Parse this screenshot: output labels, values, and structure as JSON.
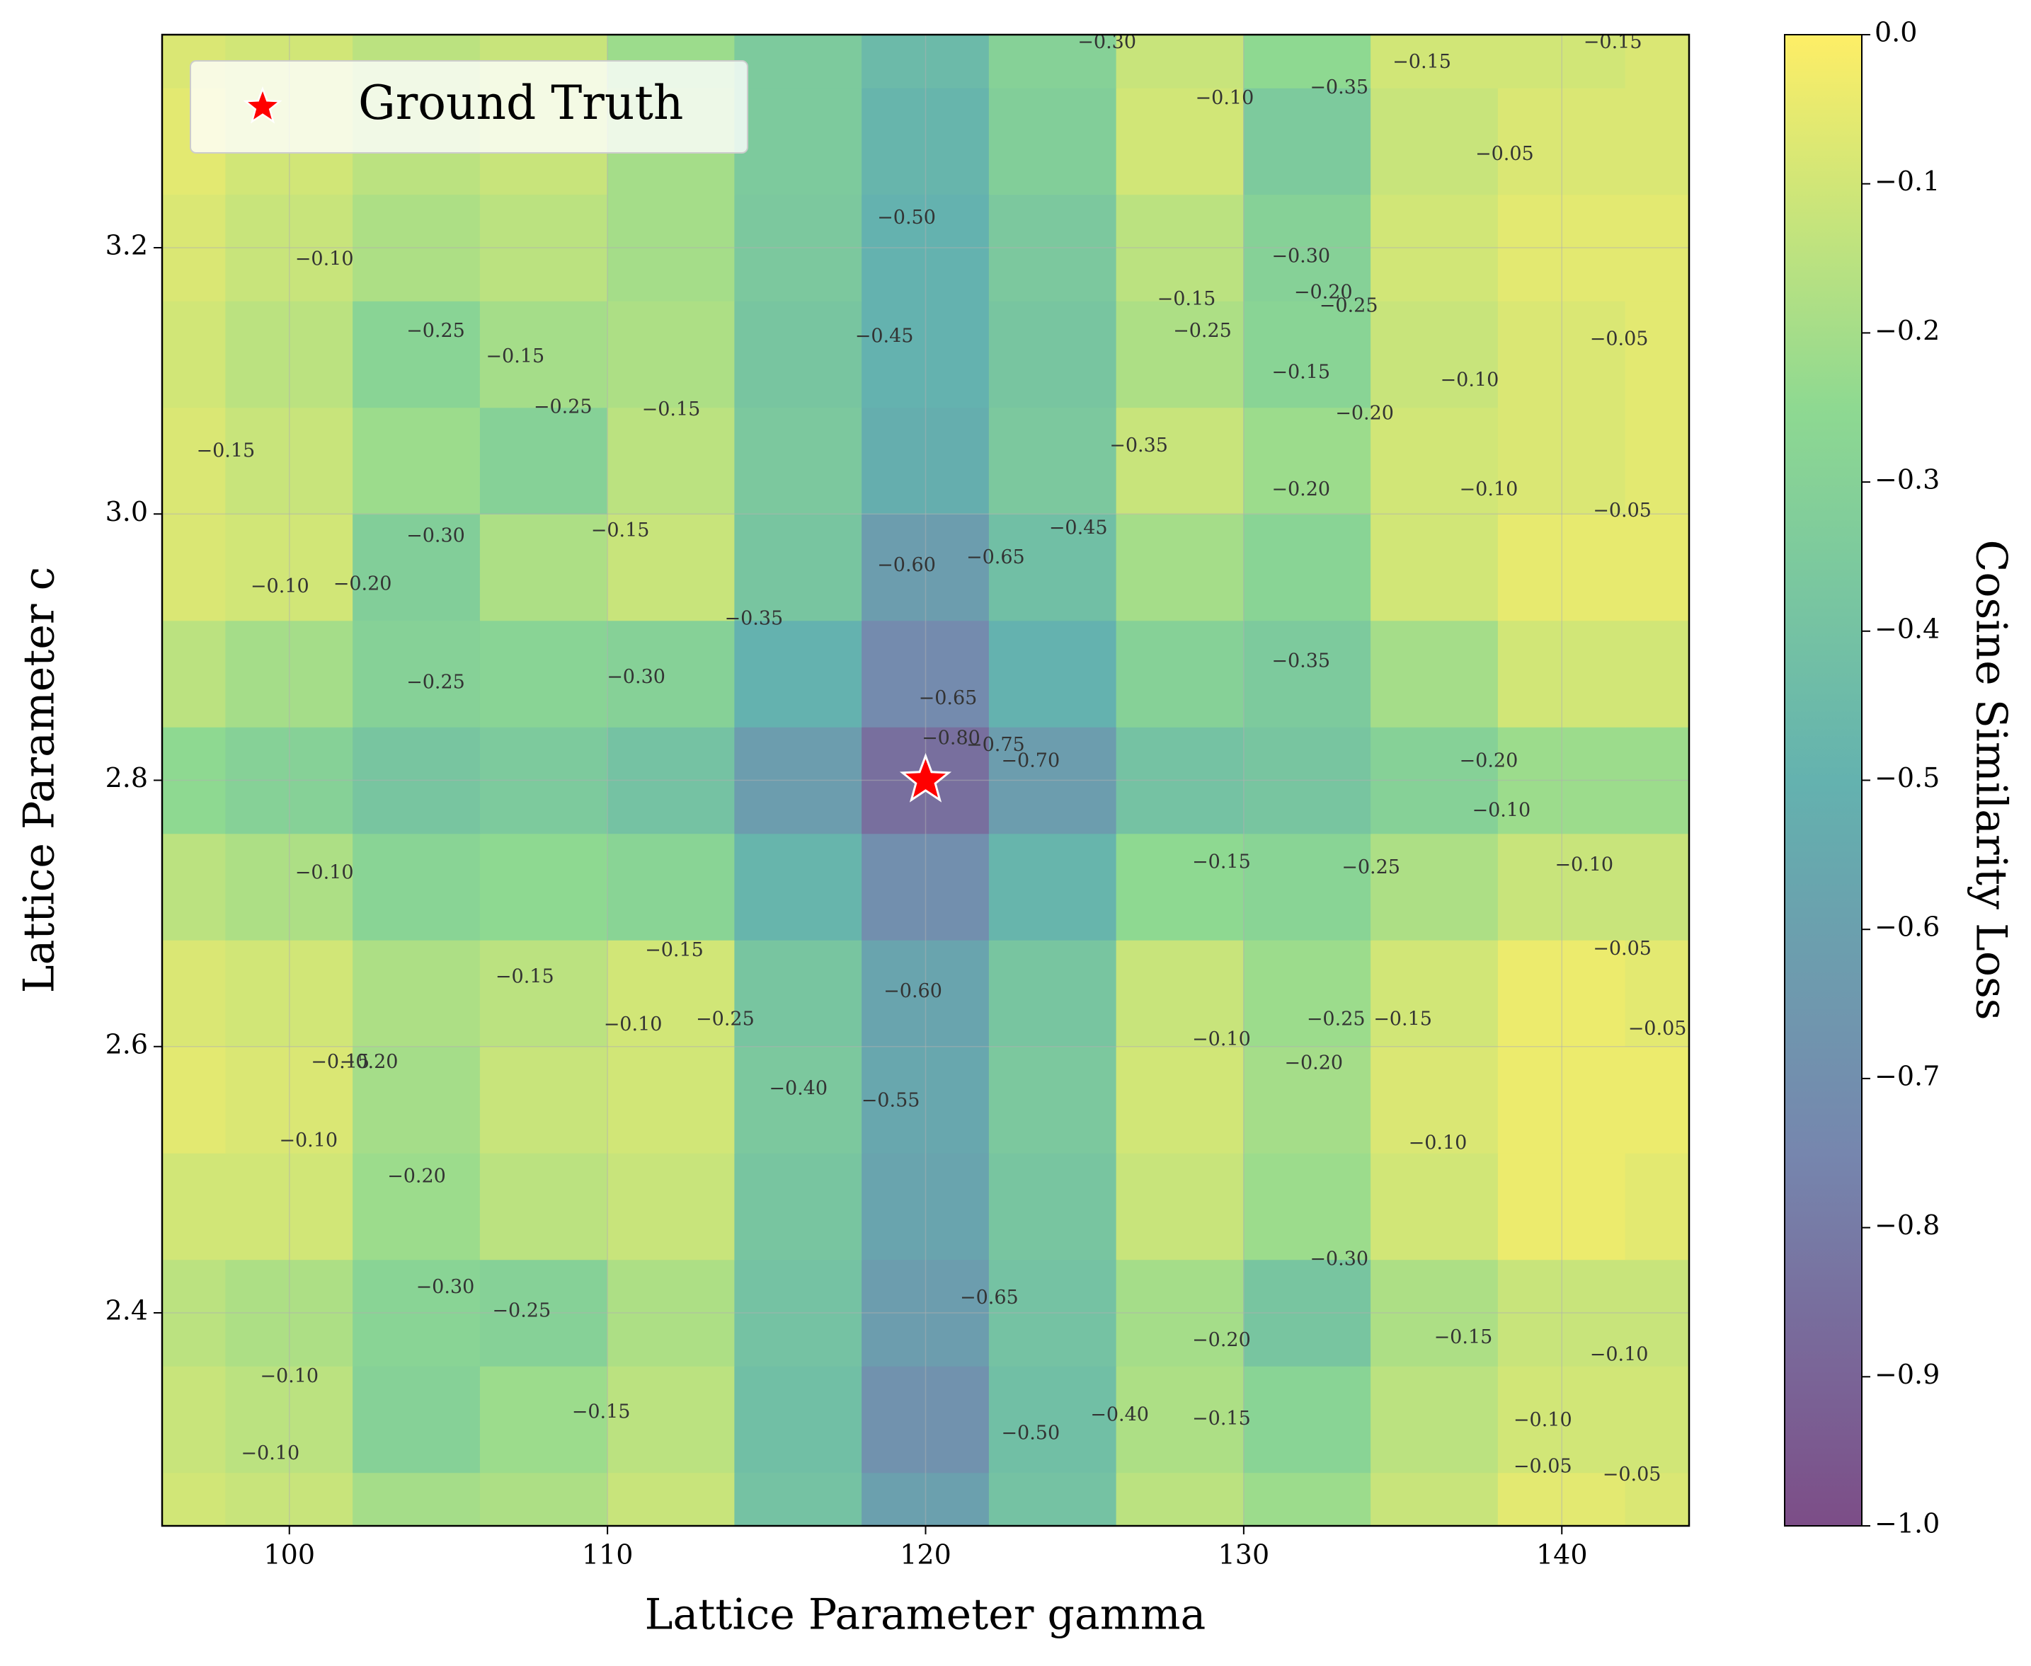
{
  "chart_data": {
    "type": "contour",
    "xlabel": "Lattice Parameter gamma",
    "ylabel": "Lattice Parameter c",
    "colorbar_label": "Cosine Similarity Loss",
    "x": [
      96,
      100,
      104,
      108,
      112,
      116,
      120,
      124,
      128,
      132,
      136,
      140,
      144
    ],
    "y": [
      2.24,
      2.32,
      2.4,
      2.48,
      2.56,
      2.64,
      2.72,
      2.8,
      2.88,
      2.96,
      3.04,
      3.12,
      3.2,
      3.28,
      3.36
    ],
    "z": [
      [
        -0.1,
        -0.12,
        -0.2,
        -0.18,
        -0.12,
        -0.4,
        -0.6,
        -0.4,
        -0.15,
        -0.22,
        -0.12,
        -0.06,
        -0.08
      ],
      [
        -0.12,
        -0.15,
        -0.3,
        -0.22,
        -0.15,
        -0.42,
        -0.68,
        -0.42,
        -0.18,
        -0.28,
        -0.15,
        -0.1,
        -0.1
      ],
      [
        -0.15,
        -0.18,
        -0.28,
        -0.3,
        -0.18,
        -0.4,
        -0.62,
        -0.4,
        -0.2,
        -0.38,
        -0.18,
        -0.12,
        -0.12
      ],
      [
        -0.1,
        -0.1,
        -0.22,
        -0.15,
        -0.12,
        -0.38,
        -0.58,
        -0.38,
        -0.12,
        -0.22,
        -0.1,
        -0.04,
        -0.06
      ],
      [
        -0.06,
        -0.08,
        -0.2,
        -0.12,
        -0.1,
        -0.36,
        -0.56,
        -0.36,
        -0.1,
        -0.2,
        -0.08,
        -0.04,
        -0.04
      ],
      [
        -0.08,
        -0.1,
        -0.18,
        -0.15,
        -0.1,
        -0.38,
        -0.58,
        -0.38,
        -0.12,
        -0.22,
        -0.1,
        -0.04,
        -0.06
      ],
      [
        -0.15,
        -0.18,
        -0.28,
        -0.25,
        -0.28,
        -0.48,
        -0.7,
        -0.48,
        -0.25,
        -0.28,
        -0.18,
        -0.12,
        -0.12
      ],
      [
        -0.25,
        -0.3,
        -0.38,
        -0.35,
        -0.4,
        -0.62,
        -0.85,
        -0.62,
        -0.4,
        -0.38,
        -0.3,
        -0.22,
        -0.22
      ],
      [
        -0.15,
        -0.2,
        -0.3,
        -0.28,
        -0.3,
        -0.5,
        -0.72,
        -0.5,
        -0.3,
        -0.35,
        -0.2,
        -0.1,
        -0.1
      ],
      [
        -0.08,
        -0.1,
        -0.32,
        -0.18,
        -0.12,
        -0.38,
        -0.62,
        -0.42,
        -0.2,
        -0.28,
        -0.1,
        -0.05,
        -0.05
      ],
      [
        -0.08,
        -0.12,
        -0.22,
        -0.3,
        -0.15,
        -0.36,
        -0.52,
        -0.36,
        -0.12,
        -0.22,
        -0.1,
        -0.08,
        -0.06
      ],
      [
        -0.1,
        -0.15,
        -0.28,
        -0.2,
        -0.18,
        -0.38,
        -0.5,
        -0.38,
        -0.18,
        -0.28,
        -0.12,
        -0.08,
        -0.06
      ],
      [
        -0.08,
        -0.12,
        -0.18,
        -0.15,
        -0.2,
        -0.36,
        -0.5,
        -0.36,
        -0.15,
        -0.3,
        -0.1,
        -0.06,
        -0.06
      ],
      [
        -0.06,
        -0.1,
        -0.15,
        -0.12,
        -0.2,
        -0.35,
        -0.48,
        -0.32,
        -0.1,
        -0.35,
        -0.12,
        -0.08,
        -0.08
      ],
      [
        -0.08,
        -0.1,
        -0.15,
        -0.12,
        -0.22,
        -0.35,
        -0.45,
        -0.3,
        -0.12,
        -0.25,
        -0.1,
        -0.1,
        -0.08
      ]
    ],
    "xlim": [
      96,
      144
    ],
    "ylim": [
      2.24,
      3.36
    ],
    "zlim": [
      -1.0,
      0.0
    ],
    "xticks": [
      100,
      110,
      120,
      130,
      140
    ],
    "yticks": [
      2.4,
      2.6,
      2.8,
      {
        "value": 3.0,
        "label": "3.0"
      },
      3.2
    ],
    "zticks": [
      {
        "value": -1.0,
        "label": "−1.0"
      },
      {
        "value": -0.9,
        "label": "−0.9"
      },
      {
        "value": -0.8,
        "label": "−0.8"
      },
      {
        "value": -0.7,
        "label": "−0.7"
      },
      {
        "value": -0.6,
        "label": "−0.6"
      },
      {
        "value": -0.5,
        "label": "−0.5"
      },
      {
        "value": -0.4,
        "label": "−0.4"
      },
      {
        "value": -0.3,
        "label": "−0.3"
      },
      {
        "value": -0.2,
        "label": "−0.2"
      },
      {
        "value": -0.1,
        "label": "−0.1"
      },
      {
        "value": 0.0,
        "label": "0.0"
      }
    ],
    "grid": true,
    "legend": "upper left",
    "series": [
      {
        "name": "Ground Truth",
        "color": "#ff0000",
        "marker": "star",
        "x": [
          120
        ],
        "y": [
          2.8
        ]
      }
    ],
    "contour_labels": [
      {
        "x": 101.1,
        "y": 3.191,
        "text": "−0.10"
      },
      {
        "x": 104.6,
        "y": 3.137,
        "text": "−0.25"
      },
      {
        "x": 107.1,
        "y": 3.118,
        "text": "−0.15"
      },
      {
        "x": 108.6,
        "y": 3.08,
        "text": "−0.25"
      },
      {
        "x": 112.0,
        "y": 3.078,
        "text": "−0.15"
      },
      {
        "x": 98.0,
        "y": 3.047,
        "text": "−0.15"
      },
      {
        "x": 104.6,
        "y": 2.983,
        "text": "−0.30"
      },
      {
        "x": 110.4,
        "y": 2.987,
        "text": "−0.15"
      },
      {
        "x": 99.7,
        "y": 2.945,
        "text": "−0.10"
      },
      {
        "x": 102.3,
        "y": 2.947,
        "text": "−0.20"
      },
      {
        "x": 104.6,
        "y": 2.873,
        "text": "−0.25"
      },
      {
        "x": 110.9,
        "y": 2.877,
        "text": "−0.30"
      },
      {
        "x": 114.6,
        "y": 2.921,
        "text": "−0.35"
      },
      {
        "x": 119.4,
        "y": 3.222,
        "text": "−0.50"
      },
      {
        "x": 118.7,
        "y": 3.133,
        "text": "−0.45"
      },
      {
        "x": 119.4,
        "y": 2.961,
        "text": "−0.60"
      },
      {
        "x": 122.2,
        "y": 2.967,
        "text": "−0.65"
      },
      {
        "x": 120.7,
        "y": 2.861,
        "text": "−0.65"
      },
      {
        "x": 120.8,
        "y": 2.831,
        "text": "−0.80"
      },
      {
        "x": 122.2,
        "y": 2.826,
        "text": "−0.75"
      },
      {
        "x": 123.3,
        "y": 2.814,
        "text": "−0.70"
      },
      {
        "x": 124.8,
        "y": 2.989,
        "text": "−0.45"
      },
      {
        "x": 126.7,
        "y": 3.051,
        "text": "−0.35"
      },
      {
        "x": 125.7,
        "y": 3.354,
        "text": "−0.30"
      },
      {
        "x": 129.4,
        "y": 3.312,
        "text": "−0.10"
      },
      {
        "x": 133.0,
        "y": 3.32,
        "text": "−0.35"
      },
      {
        "x": 135.6,
        "y": 3.339,
        "text": "−0.15"
      },
      {
        "x": 141.6,
        "y": 3.354,
        "text": "−0.15"
      },
      {
        "x": 138.2,
        "y": 3.27,
        "text": "−0.05"
      },
      {
        "x": 131.8,
        "y": 3.193,
        "text": "−0.30"
      },
      {
        "x": 132.5,
        "y": 3.166,
        "text": "−0.20"
      },
      {
        "x": 133.3,
        "y": 3.156,
        "text": "−0.25"
      },
      {
        "x": 128.2,
        "y": 3.161,
        "text": "−0.15"
      },
      {
        "x": 128.7,
        "y": 3.137,
        "text": "−0.25"
      },
      {
        "x": 131.8,
        "y": 3.106,
        "text": "−0.15"
      },
      {
        "x": 133.8,
        "y": 3.075,
        "text": "−0.20"
      },
      {
        "x": 131.8,
        "y": 3.018,
        "text": "−0.20"
      },
      {
        "x": 137.1,
        "y": 3.1,
        "text": "−0.10"
      },
      {
        "x": 137.7,
        "y": 3.018,
        "text": "−0.10"
      },
      {
        "x": 141.8,
        "y": 3.131,
        "text": "−0.05"
      },
      {
        "x": 141.9,
        "y": 3.002,
        "text": "−0.05"
      },
      {
        "x": 131.8,
        "y": 2.889,
        "text": "−0.35"
      },
      {
        "x": 137.7,
        "y": 2.814,
        "text": "−0.20"
      },
      {
        "x": 138.1,
        "y": 2.777,
        "text": "−0.10"
      },
      {
        "x": 140.7,
        "y": 2.736,
        "text": "−0.10"
      },
      {
        "x": 129.3,
        "y": 2.738,
        "text": "−0.15"
      },
      {
        "x": 134.0,
        "y": 2.734,
        "text": "−0.25"
      },
      {
        "x": 141.9,
        "y": 2.673,
        "text": "−0.05"
      },
      {
        "x": 143.0,
        "y": 2.613,
        "text": "−0.05"
      },
      {
        "x": 129.3,
        "y": 2.605,
        "text": "−0.10"
      },
      {
        "x": 132.2,
        "y": 2.587,
        "text": "−0.20"
      },
      {
        "x": 132.9,
        "y": 2.62,
        "text": "−0.25"
      },
      {
        "x": 135.0,
        "y": 2.62,
        "text": "−0.15"
      },
      {
        "x": 136.1,
        "y": 2.527,
        "text": "−0.10"
      },
      {
        "x": 133.0,
        "y": 2.44,
        "text": "−0.30"
      },
      {
        "x": 129.3,
        "y": 2.379,
        "text": "−0.20"
      },
      {
        "x": 136.9,
        "y": 2.381,
        "text": "−0.15"
      },
      {
        "x": 141.8,
        "y": 2.368,
        "text": "−0.10"
      },
      {
        "x": 129.3,
        "y": 2.32,
        "text": "−0.15"
      },
      {
        "x": 139.4,
        "y": 2.319,
        "text": "−0.10"
      },
      {
        "x": 139.4,
        "y": 2.284,
        "text": "−0.05"
      },
      {
        "x": 142.2,
        "y": 2.278,
        "text": "−0.05"
      },
      {
        "x": 101.1,
        "y": 2.73,
        "text": "−0.10"
      },
      {
        "x": 112.1,
        "y": 2.672,
        "text": "−0.15"
      },
      {
        "x": 107.4,
        "y": 2.652,
        "text": "−0.15"
      },
      {
        "x": 110.8,
        "y": 2.616,
        "text": "−0.10"
      },
      {
        "x": 113.7,
        "y": 2.62,
        "text": "−0.25"
      },
      {
        "x": 119.6,
        "y": 2.641,
        "text": "−0.60"
      },
      {
        "x": 116.0,
        "y": 2.568,
        "text": "−0.40"
      },
      {
        "x": 118.9,
        "y": 2.559,
        "text": "−0.55"
      },
      {
        "x": 101.6,
        "y": 2.588,
        "text": "−0.15"
      },
      {
        "x": 102.5,
        "y": 2.588,
        "text": "−0.20"
      },
      {
        "x": 100.6,
        "y": 2.529,
        "text": "−0.10"
      },
      {
        "x": 104.0,
        "y": 2.502,
        "text": "−0.20"
      },
      {
        "x": 104.9,
        "y": 2.419,
        "text": "−0.30"
      },
      {
        "x": 107.3,
        "y": 2.401,
        "text": "−0.25"
      },
      {
        "x": 100.0,
        "y": 2.352,
        "text": "−0.10"
      },
      {
        "x": 99.4,
        "y": 2.294,
        "text": "−0.10"
      },
      {
        "x": 109.8,
        "y": 2.325,
        "text": "−0.15"
      },
      {
        "x": 122.0,
        "y": 2.411,
        "text": "−0.65"
      },
      {
        "x": 123.3,
        "y": 2.309,
        "text": "−0.50"
      },
      {
        "x": 126.1,
        "y": 2.323,
        "text": "−0.40"
      }
    ]
  }
}
